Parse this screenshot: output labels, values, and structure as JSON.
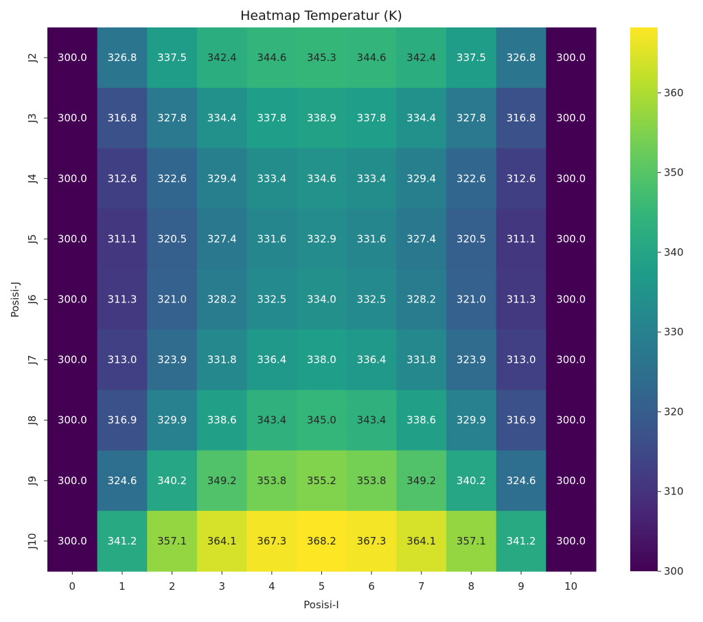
{
  "chart_data": {
    "type": "heatmap",
    "title": "Heatmap Temperatur (K)",
    "xlabel": "Posisi-I",
    "ylabel": "Posisi-J",
    "x_categories": [
      "0",
      "1",
      "2",
      "3",
      "4",
      "5",
      "6",
      "7",
      "8",
      "9",
      "10"
    ],
    "y_categories": [
      "J2",
      "J3",
      "J4",
      "J5",
      "J6",
      "J7",
      "J8",
      "J9",
      "J10"
    ],
    "values": [
      [
        300.0,
        326.8,
        337.5,
        342.4,
        344.6,
        345.3,
        344.6,
        342.4,
        337.5,
        326.8,
        300.0
      ],
      [
        300.0,
        316.8,
        327.8,
        334.4,
        337.8,
        338.9,
        337.8,
        334.4,
        327.8,
        316.8,
        300.0
      ],
      [
        300.0,
        312.6,
        322.6,
        329.4,
        333.4,
        334.6,
        333.4,
        329.4,
        322.6,
        312.6,
        300.0
      ],
      [
        300.0,
        311.1,
        320.5,
        327.4,
        331.6,
        332.9,
        331.6,
        327.4,
        320.5,
        311.1,
        300.0
      ],
      [
        300.0,
        311.3,
        321.0,
        328.2,
        332.5,
        334.0,
        332.5,
        328.2,
        321.0,
        311.3,
        300.0
      ],
      [
        300.0,
        313.0,
        323.9,
        331.8,
        336.4,
        338.0,
        336.4,
        331.8,
        323.9,
        313.0,
        300.0
      ],
      [
        300.0,
        316.9,
        329.9,
        338.6,
        343.4,
        345.0,
        343.4,
        338.6,
        329.9,
        316.9,
        300.0
      ],
      [
        300.0,
        324.6,
        340.2,
        349.2,
        353.8,
        355.2,
        353.8,
        349.2,
        340.2,
        324.6,
        300.0
      ],
      [
        300.0,
        341.2,
        357.1,
        364.1,
        367.3,
        368.2,
        367.3,
        364.1,
        357.1,
        341.2,
        300.0
      ]
    ],
    "colormap": "viridis",
    "vmin": 300.0,
    "vmax": 368.2,
    "colorbar_ticks": [
      "300",
      "310",
      "320",
      "330",
      "340",
      "350",
      "360"
    ],
    "annotations": true,
    "annotation_format": "0.1f",
    "grid": false,
    "legend": "colorbar-right"
  }
}
